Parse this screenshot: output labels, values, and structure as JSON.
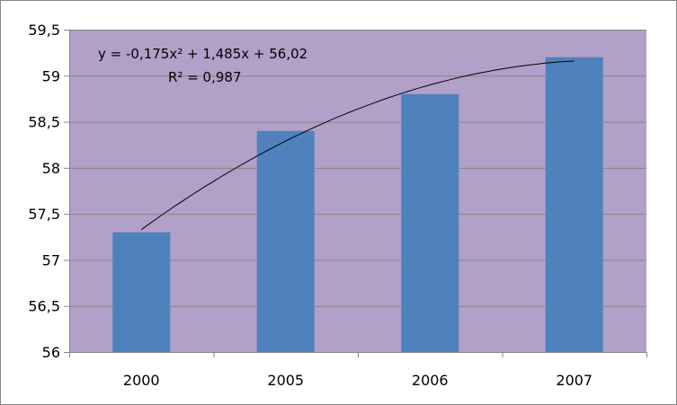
{
  "chart_data": {
    "type": "bar",
    "title": "",
    "xlabel": "",
    "ylabel": "",
    "categories": [
      "2000",
      "2005",
      "2006",
      "2007"
    ],
    "values": [
      57.3,
      58.4,
      58.8,
      59.2
    ],
    "ylim": [
      56,
      59.5
    ],
    "y_ticks": [
      "56",
      "56,5",
      "57",
      "57,5",
      "58",
      "58,5",
      "59",
      "59,5"
    ],
    "y_tick_values": [
      56,
      56.5,
      57,
      57.5,
      58,
      58.5,
      59,
      59.5
    ],
    "grid": true,
    "legend": "none",
    "trendline": {
      "type": "polynomial",
      "order": 2,
      "coefficients": [
        -0.175,
        1.485,
        56.02
      ],
      "equation": "y = -0,175x² + 1,485x + 56,02",
      "r_squared": "R² = 0,987"
    },
    "colors": {
      "plot_area": "#b1a0c7",
      "bar": "#4f81bd",
      "grid": "#868686",
      "trendline": "#000000"
    }
  }
}
